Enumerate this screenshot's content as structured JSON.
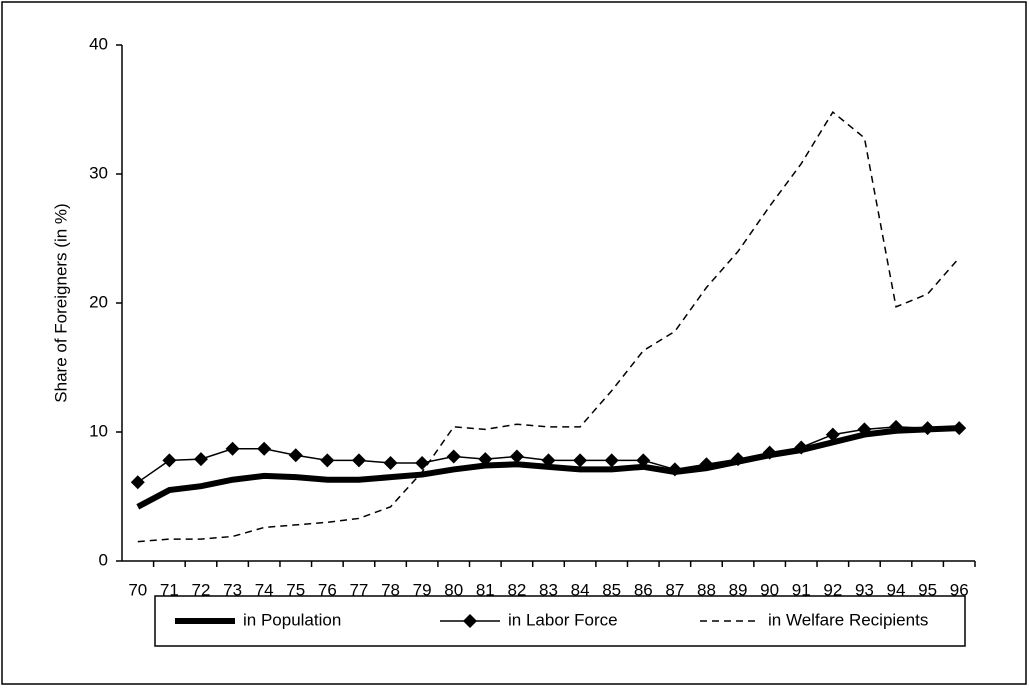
{
  "chart_data": {
    "type": "line",
    "y_label": "Share of Foreigners (in %)",
    "categories": [
      "70",
      "71",
      "72",
      "73",
      "74",
      "75",
      "76",
      "77",
      "78",
      "79",
      "80",
      "81",
      "82",
      "83",
      "84",
      "85",
      "86",
      "87",
      "88",
      "89",
      "90",
      "91",
      "92",
      "93",
      "94",
      "95",
      "96"
    ],
    "series": [
      {
        "name": "in Population",
        "color": "#000000",
        "style": "thick",
        "marker": "none",
        "values": [
          4.2,
          5.5,
          5.8,
          6.3,
          6.6,
          6.5,
          6.3,
          6.3,
          6.5,
          6.7,
          7.1,
          7.4,
          7.5,
          7.3,
          7.1,
          7.1,
          7.3,
          6.9,
          7.2,
          7.7,
          8.2,
          8.6,
          9.2,
          9.8,
          10.1,
          10.2,
          10.3
        ]
      },
      {
        "name": "in Labor Force",
        "color": "#000000",
        "style": "solid",
        "marker": "diamond",
        "values": [
          6.1,
          7.8,
          7.9,
          8.7,
          8.7,
          8.2,
          7.8,
          7.8,
          7.6,
          7.6,
          8.1,
          7.9,
          8.1,
          7.8,
          7.8,
          7.8,
          7.8,
          7.1,
          7.5,
          7.9,
          8.4,
          8.8,
          9.8,
          10.2,
          10.4,
          10.3,
          10.3
        ]
      },
      {
        "name": "in Welfare Recipients",
        "color": "#000000",
        "style": "dashed",
        "marker": "none",
        "values": [
          1.5,
          1.7,
          1.7,
          1.9,
          2.6,
          2.8,
          3.0,
          3.3,
          4.2,
          6.9,
          10.4,
          10.2,
          10.6,
          10.4,
          10.4,
          13.2,
          16.3,
          17.8,
          21.2,
          24.0,
          27.5,
          30.8,
          34.8,
          32.8,
          19.7,
          20.7,
          23.5
        ]
      }
    ],
    "ylim": [
      0,
      40
    ],
    "yticks": [
      0,
      10,
      20,
      30,
      40
    ],
    "grid": false,
    "legend": "bottom"
  }
}
